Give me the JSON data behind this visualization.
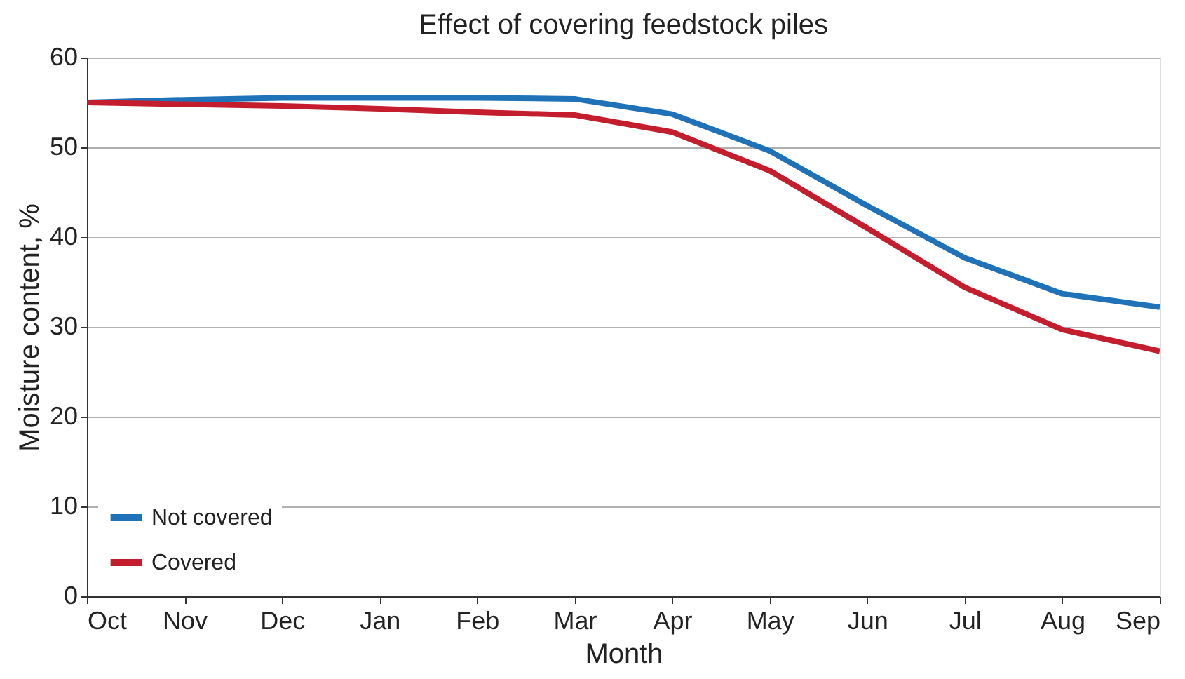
{
  "chart_data": {
    "type": "line",
    "title": "Effect of covering feedstock piles",
    "xlabel": "Month",
    "ylabel": "Moisture content, %",
    "categories": [
      "Oct",
      "Nov",
      "Dec",
      "Jan",
      "Feb",
      "Mar",
      "Apr",
      "May",
      "Jun",
      "Jul",
      "Aug",
      "Sep"
    ],
    "series": [
      {
        "name": "Not covered",
        "color": "#1f72b8",
        "values": [
          55,
          55.3,
          55.5,
          55.5,
          55.5,
          55.4,
          53.7,
          49.6,
          43.5,
          37.7,
          33.7,
          32.2
        ]
      },
      {
        "name": "Covered",
        "color": "#c41e2e",
        "values": [
          55,
          54.8,
          54.6,
          54.3,
          53.9,
          53.6,
          51.7,
          47.4,
          41,
          34.4,
          29.7,
          27.3
        ]
      }
    ],
    "ylim": [
      0,
      60
    ],
    "yticks": [
      0,
      10,
      20,
      30,
      40,
      50,
      60
    ],
    "grid": "y",
    "legend": "bottom left"
  }
}
